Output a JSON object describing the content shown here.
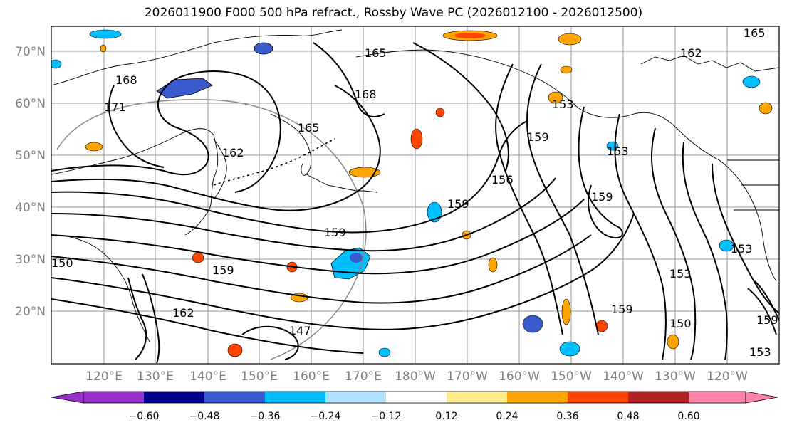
{
  "title": "2026011900 F000 500 hPa refract., Rossby Wave PC (2026012100 - 2026012500)",
  "lat_labels": [
    "70°N",
    "60°N",
    "50°N",
    "40°N",
    "30°N",
    "20°N"
  ],
  "lon_labels": [
    "120°E",
    "130°E",
    "140°E",
    "150°E",
    "160°E",
    "170°E",
    "180°W",
    "170°W",
    "160°W",
    "150°W",
    "140°W",
    "130°W",
    "120°W"
  ],
  "contour_labels": [
    "165",
    "162",
    "168",
    "171",
    "165",
    "168",
    "162",
    "159",
    "156",
    "159",
    "153",
    "159",
    "159",
    "150",
    "159",
    "162",
    "147",
    "153",
    "150",
    "153",
    "159",
    "165",
    "153",
    "159",
    "153"
  ],
  "colorbar": {
    "ticks": [
      "−0.60",
      "−0.48",
      "−0.36",
      "−0.24",
      "−0.12",
      "0.12",
      "0.24",
      "0.36",
      "0.48",
      "0.60"
    ],
    "colors": [
      "#9932cc",
      "#00008b",
      "#3a5bcc",
      "#00bfff",
      "#b0e2ff",
      "#ffffff",
      "#ffec8b",
      "#ffa500",
      "#ff4500",
      "#b22222",
      "#ff82ab"
    ]
  }
}
